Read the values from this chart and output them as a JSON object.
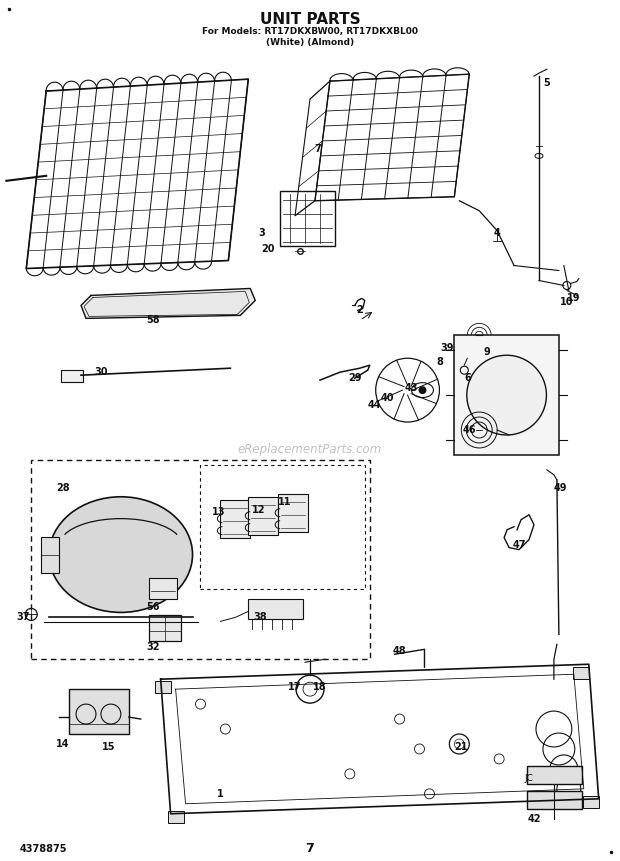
{
  "title": "UNIT PARTS",
  "subtitle1": "For Models: RT17DKXBW00, RT17DKXBL00",
  "subtitle2": "(White) (Almond)",
  "page_number": "7",
  "catalog_number": "4378875",
  "background_color": "#ffffff",
  "line_color": "#111111",
  "watermark": "eReplacementParts.com",
  "figsize": [
    6.2,
    8.61
  ],
  "dpi": 100
}
